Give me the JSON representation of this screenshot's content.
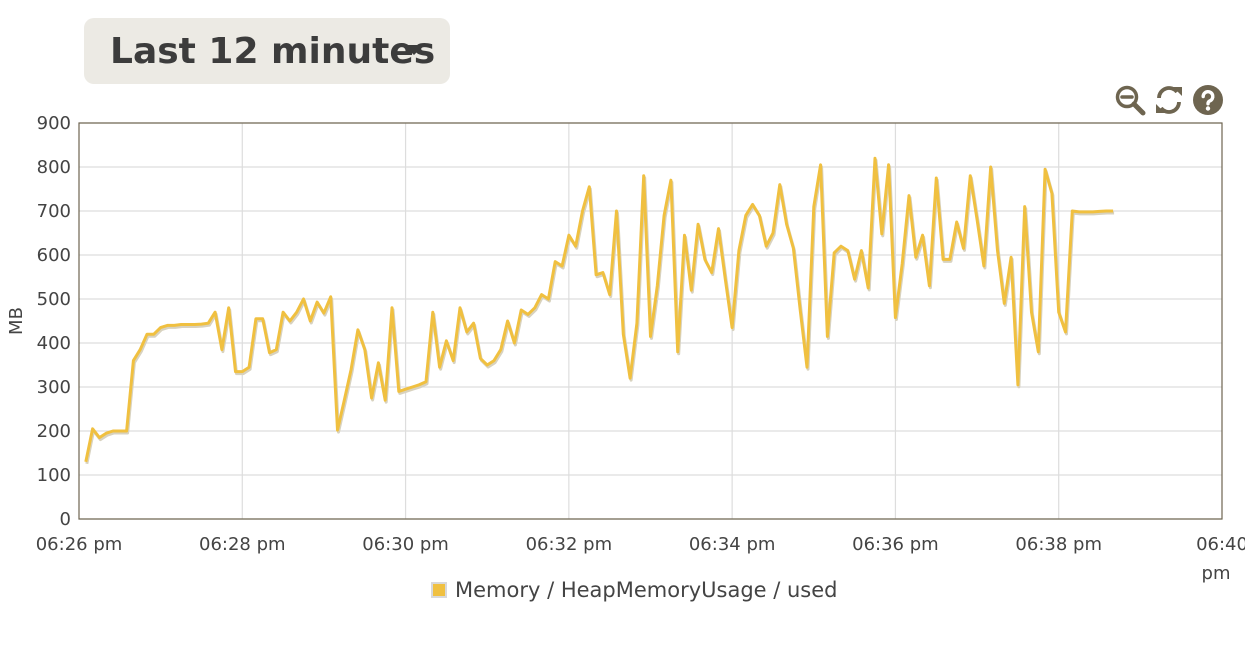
{
  "range_selector": {
    "label": "Last 12 minutes"
  },
  "toolbar": {
    "icons": [
      "zoom-out-icon",
      "refresh-icon",
      "help-icon"
    ],
    "icon_color": "#6e6550"
  },
  "chart_data": {
    "type": "line",
    "title": "",
    "xlabel": "",
    "ylabel": "MB",
    "ylim": [
      0,
      900
    ],
    "yticks": [
      "0",
      "100",
      "200",
      "300",
      "400",
      "500",
      "600",
      "700",
      "800",
      "900"
    ],
    "xlim_minutes": [
      "06:26",
      "06:40"
    ],
    "xticks": [
      {
        "l1": "06:26 pm",
        "l2": ""
      },
      {
        "l1": "06:28 pm",
        "l2": ""
      },
      {
        "l1": "06:30 pm",
        "l2": ""
      },
      {
        "l1": "06:32 pm",
        "l2": ""
      },
      {
        "l1": "06:34 pm",
        "l2": ""
      },
      {
        "l1": "06:36 pm",
        "l2": ""
      },
      {
        "l1": "06:38 pm",
        "l2": ""
      },
      {
        "l1": "06:40",
        "l2": "pm"
      }
    ],
    "grid": true,
    "legend_position": "bottom-center",
    "series": [
      {
        "name": "Memory / HeapMemoryUsage / used",
        "color": "#f0c040",
        "points": [
          [
            "06:26:05",
            130
          ],
          [
            "06:26:10",
            205
          ],
          [
            "06:26:15",
            185
          ],
          [
            "06:26:20",
            195
          ],
          [
            "06:26:25",
            200
          ],
          [
            "06:26:30",
            200
          ],
          [
            "06:26:35",
            200
          ],
          [
            "06:26:40",
            360
          ],
          [
            "06:26:45",
            385
          ],
          [
            "06:26:50",
            420
          ],
          [
            "06:26:55",
            420
          ],
          [
            "06:27:00",
            435
          ],
          [
            "06:27:05",
            440
          ],
          [
            "06:27:10",
            440
          ],
          [
            "06:27:15",
            442
          ],
          [
            "06:27:20",
            442
          ],
          [
            "06:27:25",
            442
          ],
          [
            "06:27:30",
            443
          ],
          [
            "06:27:35",
            445
          ],
          [
            "06:27:40",
            470
          ],
          [
            "06:27:45",
            385
          ],
          [
            "06:27:50",
            480
          ],
          [
            "06:27:55",
            335
          ],
          [
            "06:28:00",
            335
          ],
          [
            "06:28:05",
            345
          ],
          [
            "06:28:10",
            455
          ],
          [
            "06:28:15",
            455
          ],
          [
            "06:28:20",
            378
          ],
          [
            "06:28:25",
            385
          ],
          [
            "06:28:30",
            470
          ],
          [
            "06:28:35",
            450
          ],
          [
            "06:28:40",
            470
          ],
          [
            "06:28:45",
            500
          ],
          [
            "06:28:50",
            450
          ],
          [
            "06:28:55",
            493
          ],
          [
            "06:29:00",
            468
          ],
          [
            "06:29:05",
            505
          ],
          [
            "06:29:10",
            202
          ],
          [
            "06:29:15",
            270
          ],
          [
            "06:29:20",
            340
          ],
          [
            "06:29:25",
            430
          ],
          [
            "06:29:30",
            385
          ],
          [
            "06:29:35",
            275
          ],
          [
            "06:29:40",
            355
          ],
          [
            "06:29:45",
            270
          ],
          [
            "06:29:50",
            480
          ],
          [
            "06:29:55",
            290
          ],
          [
            "06:30:00",
            295
          ],
          [
            "06:30:05",
            300
          ],
          [
            "06:30:10",
            305
          ],
          [
            "06:30:15",
            312
          ],
          [
            "06:30:20",
            470
          ],
          [
            "06:30:25",
            345
          ],
          [
            "06:30:30",
            405
          ],
          [
            "06:30:35",
            360
          ],
          [
            "06:30:40",
            480
          ],
          [
            "06:30:45",
            425
          ],
          [
            "06:30:50",
            445
          ],
          [
            "06:30:55",
            365
          ],
          [
            "06:31:00",
            350
          ],
          [
            "06:31:05",
            360
          ],
          [
            "06:31:10",
            385
          ],
          [
            "06:31:15",
            450
          ],
          [
            "06:31:20",
            400
          ],
          [
            "06:31:25",
            475
          ],
          [
            "06:31:30",
            465
          ],
          [
            "06:31:35",
            480
          ],
          [
            "06:31:40",
            510
          ],
          [
            "06:31:45",
            500
          ],
          [
            "06:31:50",
            585
          ],
          [
            "06:31:55",
            575
          ],
          [
            "06:32:00",
            645
          ],
          [
            "06:32:05",
            620
          ],
          [
            "06:32:10",
            700
          ],
          [
            "06:32:15",
            755
          ],
          [
            "06:32:20",
            555
          ],
          [
            "06:32:25",
            560
          ],
          [
            "06:32:30",
            510
          ],
          [
            "06:32:35",
            700
          ],
          [
            "06:32:40",
            420
          ],
          [
            "06:32:45",
            320
          ],
          [
            "06:32:50",
            445
          ],
          [
            "06:32:55",
            780
          ],
          [
            "06:33:00",
            415
          ],
          [
            "06:33:05",
            530
          ],
          [
            "06:33:10",
            690
          ],
          [
            "06:33:15",
            770
          ],
          [
            "06:33:20",
            380
          ],
          [
            "06:33:25",
            645
          ],
          [
            "06:33:30",
            520
          ],
          [
            "06:33:35",
            670
          ],
          [
            "06:33:40",
            590
          ],
          [
            "06:33:45",
            560
          ],
          [
            "06:33:50",
            660
          ],
          [
            "06:33:55",
            545
          ],
          [
            "06:34:00",
            435
          ],
          [
            "06:34:05",
            610
          ],
          [
            "06:34:10",
            690
          ],
          [
            "06:34:15",
            715
          ],
          [
            "06:34:20",
            690
          ],
          [
            "06:34:25",
            620
          ],
          [
            "06:34:30",
            650
          ],
          [
            "06:34:35",
            760
          ],
          [
            "06:34:40",
            670
          ],
          [
            "06:34:45",
            615
          ],
          [
            "06:34:50",
            475
          ],
          [
            "06:34:55",
            345
          ],
          [
            "06:35:00",
            710
          ],
          [
            "06:35:05",
            805
          ],
          [
            "06:35:10",
            415
          ],
          [
            "06:35:15",
            605
          ],
          [
            "06:35:20",
            620
          ],
          [
            "06:35:25",
            610
          ],
          [
            "06:35:30",
            545
          ],
          [
            "06:35:35",
            610
          ],
          [
            "06:35:40",
            525
          ],
          [
            "06:35:45",
            820
          ],
          [
            "06:35:50",
            648
          ],
          [
            "06:35:55",
            805
          ],
          [
            "06:36:00",
            458
          ],
          [
            "06:36:05",
            580
          ],
          [
            "06:36:10",
            735
          ],
          [
            "06:36:15",
            595
          ],
          [
            "06:36:20",
            645
          ],
          [
            "06:36:25",
            530
          ],
          [
            "06:36:30",
            775
          ],
          [
            "06:36:35",
            590
          ],
          [
            "06:36:40",
            590
          ],
          [
            "06:36:45",
            675
          ],
          [
            "06:36:50",
            615
          ],
          [
            "06:36:55",
            780
          ],
          [
            "06:37:00",
            680
          ],
          [
            "06:37:05",
            575
          ],
          [
            "06:37:10",
            800
          ],
          [
            "06:37:15",
            610
          ],
          [
            "06:37:20",
            490
          ],
          [
            "06:37:25",
            595
          ],
          [
            "06:37:30",
            305
          ],
          [
            "06:37:35",
            710
          ],
          [
            "06:37:40",
            470
          ],
          [
            "06:37:45",
            380
          ],
          [
            "06:37:50",
            795
          ],
          [
            "06:37:55",
            740
          ],
          [
            "06:38:00",
            470
          ],
          [
            "06:38:05",
            425
          ],
          [
            "06:38:10",
            700
          ],
          [
            "06:38:15",
            698
          ],
          [
            "06:38:20",
            698
          ],
          [
            "06:38:25",
            698
          ],
          [
            "06:38:30",
            699
          ],
          [
            "06:38:35",
            700
          ],
          [
            "06:38:40",
            700
          ]
        ]
      }
    ]
  }
}
